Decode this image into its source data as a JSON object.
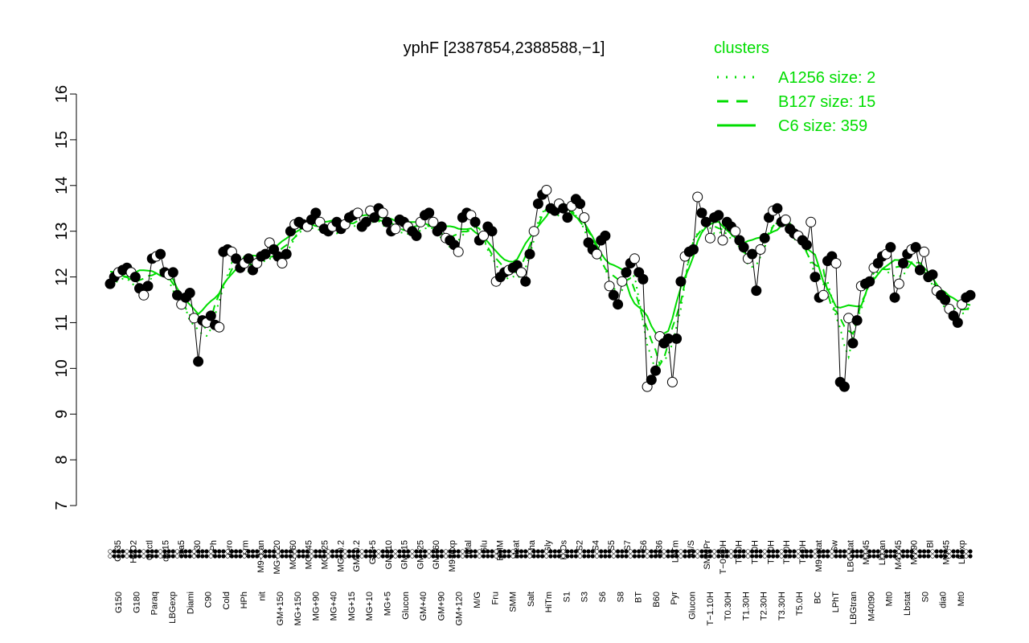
{
  "chart_data": {
    "type": "line",
    "title": "yphF [2387854,2388588,−1]",
    "xlabel": "",
    "ylabel": "",
    "ylim": [
      7,
      16
    ],
    "yticks": [
      7,
      8,
      9,
      10,
      11,
      12,
      13,
      14,
      15,
      16
    ],
    "grid": false,
    "legend": {
      "title": "clusters",
      "position": "top-right",
      "entries": [
        {
          "label": "A1256 size: 2",
          "style": "dotted"
        },
        {
          "label": "B127 size: 15",
          "style": "dashed"
        },
        {
          "label": "C6 size: 359",
          "style": "solid"
        }
      ]
    },
    "x_labels_upper": [
      "G135",
      "H2O2",
      "Oxctl",
      "dia15",
      "dia5",
      "C30",
      "LPh",
      "aero",
      "ferm",
      "M9−tran",
      "MG+120",
      "MG+60",
      "MG+45",
      "MG+25",
      "MG−0.2",
      "GM−0.2",
      "GM+5",
      "GM+10",
      "GM+15",
      "GM+25",
      "GM+60",
      "M9−exp",
      "Mal",
      "Glu",
      "BMM",
      "Heat",
      "Etha",
      "Gly",
      "HiOs",
      "S2",
      "S4",
      "S5",
      "S7",
      "S6",
      "B36",
      "LoTm",
      "G/S",
      "SMMPr",
      "T−0.40H",
      "T0.0H",
      "T1.0H",
      "T2.0H",
      "T3.0H",
      "T4.0H",
      "M9−stat",
      "Sw",
      "LBGstat",
      "M0t45",
      "Lbtran",
      "M40t45",
      "M0t90",
      "Bl",
      "M0t45",
      "Lbexp"
    ],
    "x_labels_lower": [
      "G150",
      "G180",
      "Paraq",
      "LBGexp",
      "Diami",
      "C90",
      "Cold",
      "HPh",
      "nit",
      "GM+150",
      "MG+150",
      "MG+90",
      "MG+40",
      "MG+15",
      "MG+10",
      "MG+5",
      "Glucon",
      "GM+40",
      "GM+90",
      "GM+120",
      "M/G",
      "Fru",
      "SMM",
      "Salt",
      "HiTm",
      "S1",
      "S3",
      "S6",
      "S8",
      "BT",
      "B60",
      "Pyr",
      "Glucon",
      "T−1.10H",
      "T0.30H",
      "T1.30H",
      "T2.30H",
      "T3.30H",
      "T5.0H",
      "BC",
      "LPhT",
      "LBGtran",
      "M40t90",
      "Mt0",
      "Lbstat",
      "S0",
      "dia0",
      "Mt0"
    ],
    "series": [
      {
        "values": [
          11.85,
          12.0,
          12.1,
          12.15,
          12.2,
          12.1,
          12.0,
          11.75,
          11.6,
          11.8,
          12.4,
          12.45,
          12.5,
          12.1,
          12.05,
          12.1,
          11.6,
          11.4,
          11.55,
          11.65,
          11.1,
          10.15,
          11.05,
          11.0,
          11.15,
          10.95,
          10.9,
          12.55,
          12.6,
          12.55,
          12.4,
          12.2,
          12.3,
          12.4,
          12.15,
          12.3,
          12.45,
          12.5,
          12.75,
          12.6,
          12.45,
          12.3,
          12.5,
          13.0,
          13.15,
          13.2,
          13.15,
          13.1,
          13.25,
          13.4,
          13.2,
          13.05,
          13.0,
          13.1,
          13.2,
          13.05,
          13.15,
          13.3,
          13.35,
          13.4,
          13.1,
          13.2,
          13.45,
          13.3,
          13.5,
          13.4,
          13.2,
          13.0,
          13.05,
          13.25,
          13.2,
          13.1,
          13.0,
          12.9,
          13.2,
          13.35,
          13.4,
          13.2,
          13.0,
          13.1,
          12.85,
          12.8,
          12.7,
          12.55,
          13.3,
          13.4,
          13.35,
          13.2,
          12.8,
          12.9,
          13.1,
          13.0,
          11.9,
          12.0,
          12.1,
          12.15,
          12.2,
          12.25,
          12.1,
          11.9,
          12.5,
          13.0,
          13.6,
          13.8,
          13.9,
          13.5,
          13.45,
          13.6,
          13.5,
          13.3,
          13.55,
          13.7,
          13.6,
          13.3,
          12.75,
          12.6,
          12.5,
          12.8,
          12.9,
          11.8,
          11.6,
          11.4,
          11.9,
          12.1,
          12.3,
          12.4,
          12.1,
          11.95,
          9.6,
          9.75,
          9.95,
          10.7,
          10.55,
          10.65,
          9.7,
          10.65,
          11.9,
          12.45,
          12.55,
          12.6,
          13.75,
          13.4,
          13.2,
          12.85,
          13.3,
          13.35,
          12.8,
          13.2,
          13.1,
          13.0,
          12.8,
          12.65,
          12.4,
          12.5,
          11.7,
          12.6,
          12.85,
          13.3,
          13.45,
          13.5,
          13.2,
          13.25,
          13.05,
          12.95,
          12.9,
          12.8,
          12.7,
          13.2,
          12.0,
          11.55,
          11.6,
          12.35,
          12.45,
          12.3,
          9.7,
          9.6,
          11.1,
          10.55,
          11.05,
          11.8,
          11.85,
          11.9,
          12.2,
          12.3,
          12.45,
          12.5,
          12.65,
          11.55,
          11.85,
          12.3,
          12.5,
          12.6,
          12.65,
          12.15,
          12.55,
          12.0,
          12.05,
          11.7,
          11.6,
          11.5,
          11.3,
          11.15,
          11.0,
          11.4,
          11.55,
          11.6
        ]
      }
    ]
  }
}
